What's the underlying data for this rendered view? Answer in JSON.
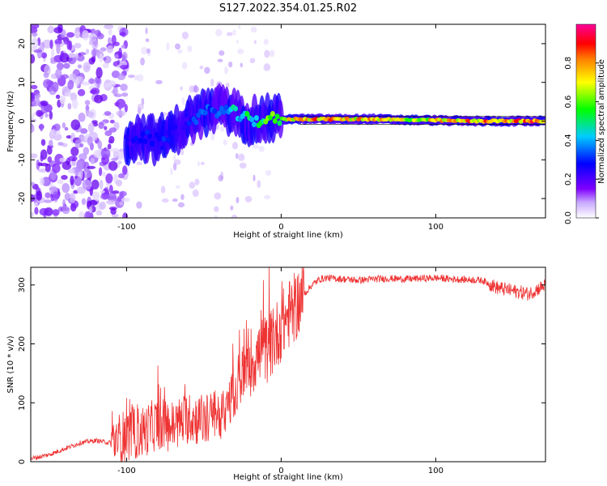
{
  "title": "S127.2022.354.01.25.R02",
  "chart_data": [
    {
      "type": "heatmap",
      "xlabel": "Height of straight line (km)",
      "ylabel": "Frequency (Hz)",
      "xlim": [
        -162,
        171
      ],
      "ylim": [
        -25,
        25
      ],
      "xticks": [
        -100,
        0,
        100
      ],
      "yticks": [
        -20,
        -10,
        0,
        10,
        20
      ],
      "grid": false,
      "colorbar": {
        "label": "Normalized spectral amplitude",
        "range": [
          0,
          1
        ],
        "ticks": [
          0.0,
          0.2,
          0.4,
          0.6,
          0.8
        ],
        "colormap": [
          "#ffffff",
          "#b39ddb",
          "#8000ff",
          "#0000ff",
          "#00ffff",
          "#00ff00",
          "#ffff00",
          "#ff0000",
          "#ff00aa"
        ]
      },
      "signal_track": [
        {
          "x": -100,
          "freq": -5,
          "amp": 0.25
        },
        {
          "x": -90,
          "freq": -4,
          "amp": 0.3
        },
        {
          "x": -80,
          "freq": -5,
          "amp": 0.3
        },
        {
          "x": -70,
          "freq": -3,
          "amp": 0.3
        },
        {
          "x": -60,
          "freq": 0,
          "amp": 0.3
        },
        {
          "x": -50,
          "freq": 2,
          "amp": 0.35
        },
        {
          "x": -40,
          "freq": 3,
          "amp": 0.4
        },
        {
          "x": -30,
          "freq": 2,
          "amp": 0.5
        },
        {
          "x": -20,
          "freq": 0,
          "amp": 0.55
        },
        {
          "x": -10,
          "freq": 0.5,
          "amp": 0.6
        },
        {
          "x": 0,
          "freq": 0.5,
          "amp": 0.7
        },
        {
          "x": 20,
          "freq": 0.5,
          "amp": 0.9
        },
        {
          "x": 40,
          "freq": 0.5,
          "amp": 0.85
        },
        {
          "x": 60,
          "freq": 0.5,
          "amp": 0.8
        },
        {
          "x": 80,
          "freq": 0.3,
          "amp": 0.75
        },
        {
          "x": 100,
          "freq": 0.2,
          "amp": 0.8
        },
        {
          "x": 120,
          "freq": 0,
          "amp": 0.9
        },
        {
          "x": 140,
          "freq": 0,
          "amp": 0.9
        },
        {
          "x": 171,
          "freq": 0,
          "amp": 0.9
        }
      ]
    },
    {
      "type": "line",
      "xlabel": "Height of straight line (km)",
      "ylabel": "SNR (10 * v/v)",
      "xlim": [
        -162,
        171
      ],
      "ylim": [
        0,
        330
      ],
      "xticks": [
        -100,
        0,
        100
      ],
      "yticks": [
        0,
        100,
        200,
        300
      ],
      "grid": false,
      "color": "#ee3333",
      "series": [
        {
          "x": [
            -162,
            -150,
            -140,
            -130,
            -120,
            -110,
            -100,
            -90,
            -80,
            -70,
            -60,
            -50,
            -40,
            -35,
            -30,
            -25,
            -20,
            -15,
            -10,
            -5,
            0,
            5,
            10,
            15,
            20,
            25,
            30,
            40,
            50,
            60,
            70,
            80,
            90,
            100,
            110,
            120,
            130,
            140,
            150,
            160,
            171
          ],
          "y": [
            5,
            12,
            22,
            32,
            36,
            32,
            45,
            50,
            65,
            60,
            75,
            70,
            80,
            95,
            120,
            150,
            170,
            180,
            190,
            205,
            230,
            250,
            265,
            285,
            300,
            310,
            312,
            310,
            308,
            310,
            311,
            310,
            311,
            312,
            310,
            309,
            308,
            295,
            290,
            285,
            300
          ]
        }
      ]
    }
  ]
}
